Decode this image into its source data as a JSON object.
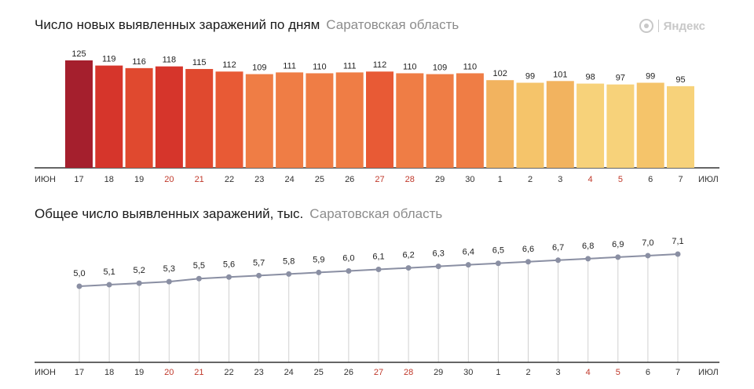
{
  "logo": {
    "text": "Яндекс"
  },
  "charts": [
    {
      "title": "Число новых выявленных заражений по дням",
      "region": "Саратовская область"
    },
    {
      "title": "Общее число выявленных заражений, тыс.",
      "region": "Саратовская область"
    }
  ],
  "chart_data": [
    {
      "type": "bar",
      "title": "Число новых выявленных заражений по дням",
      "subtitle": "Саратовская область",
      "month_start": "ИЮН",
      "month_end": "ИЮЛ",
      "categories": [
        "17",
        "18",
        "19",
        "20",
        "21",
        "22",
        "23",
        "24",
        "25",
        "26",
        "27",
        "28",
        "29",
        "30",
        "1",
        "2",
        "3",
        "4",
        "5",
        "6",
        "7"
      ],
      "weekend": [
        false,
        false,
        false,
        true,
        true,
        false,
        false,
        false,
        false,
        false,
        true,
        true,
        false,
        false,
        false,
        false,
        false,
        true,
        true,
        false,
        false
      ],
      "values": [
        125,
        119,
        116,
        118,
        115,
        112,
        109,
        111,
        110,
        111,
        112,
        110,
        109,
        110,
        102,
        99,
        101,
        98,
        97,
        99,
        95
      ],
      "colors": [
        "#a51f2d",
        "#d6352b",
        "#e0492f",
        "#d6352b",
        "#e0492f",
        "#e85a35",
        "#ef7d45",
        "#ef7d45",
        "#ef7d45",
        "#ef7d45",
        "#e85a35",
        "#ef7d45",
        "#ef7d45",
        "#ef7d45",
        "#f2b35f",
        "#f5c46a",
        "#f2b35f",
        "#f7d27a",
        "#f7d27a",
        "#f5c46a",
        "#f7d27a"
      ],
      "ylim": [
        0,
        125
      ]
    },
    {
      "type": "line",
      "title": "Общее число выявленных заражений, тыс.",
      "subtitle": "Саратовская область",
      "month_start": "ИЮН",
      "month_end": "ИЮЛ",
      "categories": [
        "17",
        "18",
        "19",
        "20",
        "21",
        "22",
        "23",
        "24",
        "25",
        "26",
        "27",
        "28",
        "29",
        "30",
        "1",
        "2",
        "3",
        "4",
        "5",
        "6",
        "7"
      ],
      "weekend": [
        false,
        false,
        false,
        true,
        true,
        false,
        false,
        false,
        false,
        false,
        true,
        true,
        false,
        false,
        false,
        false,
        false,
        true,
        true,
        false,
        false
      ],
      "values": [
        5.0,
        5.1,
        5.2,
        5.3,
        5.5,
        5.6,
        5.7,
        5.8,
        5.9,
        6.0,
        6.1,
        6.2,
        6.3,
        6.4,
        6.5,
        6.6,
        6.7,
        6.8,
        6.9,
        7.0,
        7.1
      ],
      "labels": [
        "5,0",
        "5,1",
        "5,2",
        "5,3",
        "5,5",
        "5,6",
        "5,7",
        "5,8",
        "5,9",
        "6,0",
        "6,1",
        "6,2",
        "6,3",
        "6,4",
        "6,5",
        "6,6",
        "6,7",
        "6,8",
        "6,9",
        "7,0",
        "7,1"
      ],
      "line_color": "#8a8fa3",
      "ylim": [
        0,
        7.1
      ]
    }
  ]
}
